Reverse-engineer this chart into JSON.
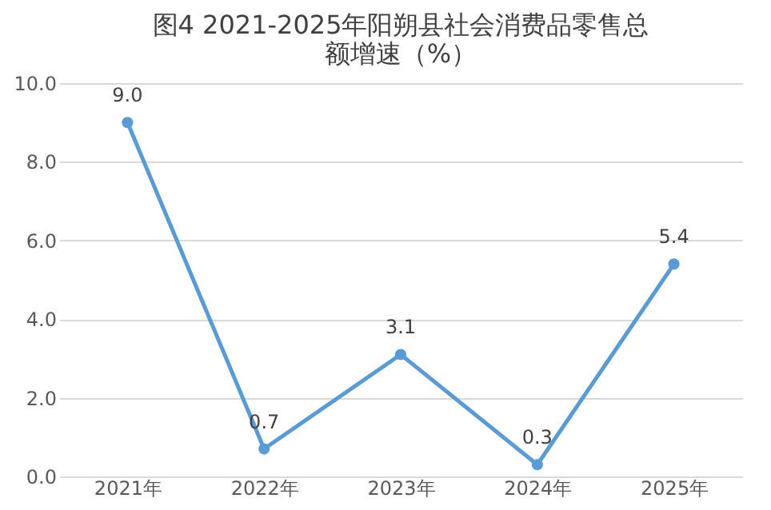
{
  "chart_data": {
    "type": "line",
    "title": "图4 2021-2025年阳朔县社会消费品零售总额增速（%）",
    "categories": [
      "2021年",
      "2022年",
      "2023年",
      "2024年",
      "2025年"
    ],
    "series": [
      {
        "color": "#5b9bd5",
        "values": [
          9.0,
          0.7,
          3.1,
          0.3,
          5.4
        ]
      }
    ],
    "ylim": [
      0,
      10
    ],
    "yticks": [
      {
        "value": 0,
        "label": "0.0"
      },
      {
        "value": 2,
        "label": "2.0"
      },
      {
        "value": 4,
        "label": "4.0"
      },
      {
        "value": 6,
        "label": "6.0"
      },
      {
        "value": 8,
        "label": "8.0"
      },
      {
        "value": 10,
        "label": "10.0"
      }
    ],
    "value_labels": [
      "9.0",
      "0.7",
      "3.1",
      "0.3",
      "5.4"
    ],
    "grid": "y",
    "marker": "circle",
    "line_style": "solid"
  }
}
